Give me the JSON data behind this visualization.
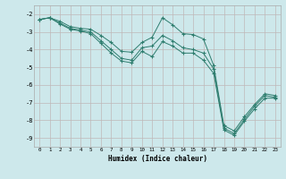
{
  "xlabel": "Humidex (Indice chaleur)",
  "xlim": [
    -0.5,
    23.5
  ],
  "ylim": [
    -9.5,
    -1.5
  ],
  "yticks": [
    -9,
    -8,
    -7,
    -6,
    -5,
    -4,
    -3,
    -2
  ],
  "xticks": [
    0,
    1,
    2,
    3,
    4,
    5,
    6,
    7,
    8,
    9,
    10,
    11,
    12,
    13,
    14,
    15,
    16,
    17,
    18,
    19,
    20,
    21,
    22,
    23
  ],
  "line_color": "#2e7d6e",
  "bg_color": "#cde8eb",
  "grid_color": "#c0b8b8",
  "series": [
    {
      "x": [
        0,
        1,
        2,
        3,
        4,
        5,
        6,
        7,
        8,
        9,
        10,
        11,
        12,
        13,
        14,
        15,
        16,
        17,
        18,
        19,
        20,
        21,
        22,
        23
      ],
      "y": [
        -2.3,
        -2.2,
        -2.4,
        -2.7,
        -2.8,
        -2.85,
        -3.2,
        -3.6,
        -4.1,
        -4.15,
        -3.6,
        -3.3,
        -2.2,
        -2.6,
        -3.1,
        -3.15,
        -3.4,
        -4.9,
        -8.3,
        -8.6,
        -7.8,
        -7.1,
        -6.5,
        -6.6
      ]
    },
    {
      "x": [
        0,
        1,
        2,
        3,
        4,
        5,
        6,
        7,
        8,
        9,
        10,
        11,
        12,
        13,
        14,
        15,
        16,
        17,
        18,
        19,
        20,
        21,
        22,
        23
      ],
      "y": [
        -2.3,
        -2.2,
        -2.5,
        -2.8,
        -2.9,
        -3.0,
        -3.5,
        -4.0,
        -4.5,
        -4.6,
        -3.9,
        -3.8,
        -3.2,
        -3.5,
        -3.9,
        -4.0,
        -4.2,
        -5.1,
        -8.45,
        -8.75,
        -7.95,
        -7.2,
        -6.6,
        -6.7
      ]
    },
    {
      "x": [
        0,
        1,
        2,
        3,
        4,
        5,
        6,
        7,
        8,
        9,
        10,
        11,
        12,
        13,
        14,
        15,
        16,
        17,
        18,
        19,
        20,
        21,
        22,
        23
      ],
      "y": [
        -2.3,
        -2.2,
        -2.55,
        -2.85,
        -2.95,
        -3.1,
        -3.65,
        -4.2,
        -4.65,
        -4.75,
        -4.1,
        -4.4,
        -3.55,
        -3.8,
        -4.2,
        -4.2,
        -4.6,
        -5.35,
        -8.55,
        -8.85,
        -8.05,
        -7.35,
        -6.75,
        -6.75
      ]
    }
  ]
}
